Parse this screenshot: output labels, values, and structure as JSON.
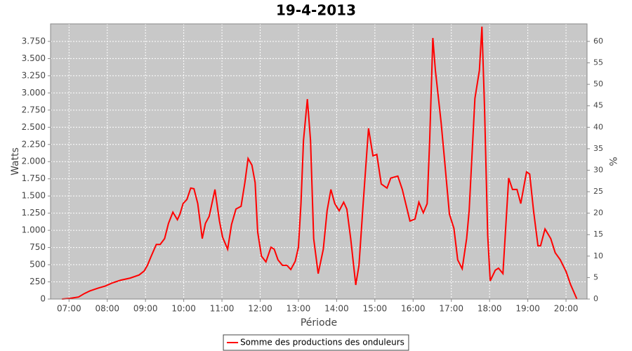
{
  "chart_data": {
    "type": "line",
    "title": "19-4-2013",
    "x_label": "Période",
    "y_label": "Watts",
    "y2_label": "%",
    "x": [
      "06:49",
      "07:02",
      "07:15",
      "07:24",
      "07:33",
      "07:46",
      "07:57",
      "08:08",
      "08:21",
      "08:36",
      "08:50",
      "08:58",
      "09:03",
      "09:09",
      "09:17",
      "09:23",
      "09:30",
      "09:36",
      "09:43",
      "09:50",
      "09:54",
      "09:59",
      "10:05",
      "10:11",
      "10:16",
      "10:22",
      "10:29",
      "10:34",
      "10:40",
      "10:49",
      "10:56",
      "11:01",
      "11:09",
      "11:15",
      "11:22",
      "11:30",
      "11:36",
      "11:41",
      "11:47",
      "11:52",
      "11:56",
      "12:02",
      "12:09",
      "12:17",
      "12:22",
      "12:28",
      "12:35",
      "12:42",
      "12:48",
      "12:55",
      "13:00",
      "13:04",
      "13:08",
      "13:14",
      "13:19",
      "13:24",
      "13:31",
      "13:39",
      "13:45",
      "13:51",
      "13:57",
      "14:04",
      "14:11",
      "14:16",
      "14:22",
      "14:30",
      "14:35",
      "14:42",
      "14:50",
      "14:57",
      "15:03",
      "15:10",
      "15:19",
      "15:25",
      "15:36",
      "15:43",
      "15:55",
      "16:03",
      "16:09",
      "16:16",
      "16:22",
      "16:26",
      "16:31",
      "16:35",
      "16:44",
      "16:49",
      "16:57",
      "17:04",
      "17:10",
      "17:17",
      "17:24",
      "17:28",
      "17:37",
      "17:44",
      "17:48",
      "17:52",
      "17:57",
      "18:01",
      "18:09",
      "18:14",
      "18:21",
      "18:30",
      "18:36",
      "18:43",
      "18:49",
      "18:58",
      "19:03",
      "19:09",
      "19:16",
      "19:20",
      "19:27",
      "19:36",
      "19:43",
      "19:51",
      "20:00",
      "20:07",
      "20:17"
    ],
    "series": [
      {
        "name": "Somme des productions des onduleurs",
        "color": "#ff0000",
        "values": [
          0,
          10,
          30,
          80,
          120,
          160,
          190,
          235,
          275,
          305,
          350,
          410,
          490,
          625,
          795,
          795,
          880,
          1100,
          1265,
          1155,
          1235,
          1390,
          1450,
          1615,
          1605,
          1390,
          880,
          1100,
          1205,
          1595,
          1135,
          900,
          725,
          1085,
          1310,
          1350,
          1695,
          2045,
          1950,
          1695,
          980,
          625,
          540,
          755,
          725,
          570,
          490,
          490,
          430,
          550,
          755,
          1390,
          2310,
          2910,
          2310,
          880,
          370,
          725,
          1285,
          1595,
          1390,
          1285,
          1410,
          1310,
          880,
          205,
          490,
          1440,
          2485,
          2085,
          2105,
          1675,
          1615,
          1760,
          1790,
          1595,
          1135,
          1165,
          1410,
          1255,
          1390,
          2310,
          3800,
          3330,
          2565,
          2055,
          1235,
          1030,
          570,
          440,
          880,
          1285,
          2920,
          3330,
          3965,
          2820,
          930,
          265,
          420,
          450,
          370,
          1760,
          1595,
          1595,
          1390,
          1850,
          1820,
          1285,
          775,
          775,
          1020,
          880,
          675,
          570,
          400,
          215,
          0
        ]
      }
    ],
    "xlim": [
      "06:31",
      "20:33"
    ],
    "xticks": [
      "07:00",
      "08:00",
      "09:00",
      "10:00",
      "11:00",
      "12:00",
      "13:00",
      "14:00",
      "15:00",
      "16:00",
      "17:00",
      "18:00",
      "19:00",
      "20:00"
    ],
    "ylim": [
      0,
      4005
    ],
    "yticks": [
      0,
      250,
      500,
      750,
      {
        "value": 1000,
        "label": "1.000"
      },
      {
        "value": 1250,
        "label": "1.250"
      },
      {
        "value": 1500,
        "label": "1.500"
      },
      {
        "value": 1750,
        "label": "1.750"
      },
      {
        "value": 2000,
        "label": "2.000"
      },
      {
        "value": 2250,
        "label": "2.250"
      },
      {
        "value": 2500,
        "label": "2.500"
      },
      {
        "value": 2750,
        "label": "2.750"
      },
      {
        "value": 3000,
        "label": "3.000"
      },
      {
        "value": 3250,
        "label": "3.250"
      },
      {
        "value": 3500,
        "label": "3.500"
      },
      {
        "value": 3750,
        "label": "3.750"
      }
    ],
    "y2lim": [
      0,
      64.08
    ],
    "y2ticks": [
      0,
      5,
      10,
      15,
      20,
      25,
      30,
      35,
      40,
      45,
      50,
      55,
      60
    ],
    "grid": true,
    "background": "#c8c8c8",
    "legend": "bottom"
  }
}
